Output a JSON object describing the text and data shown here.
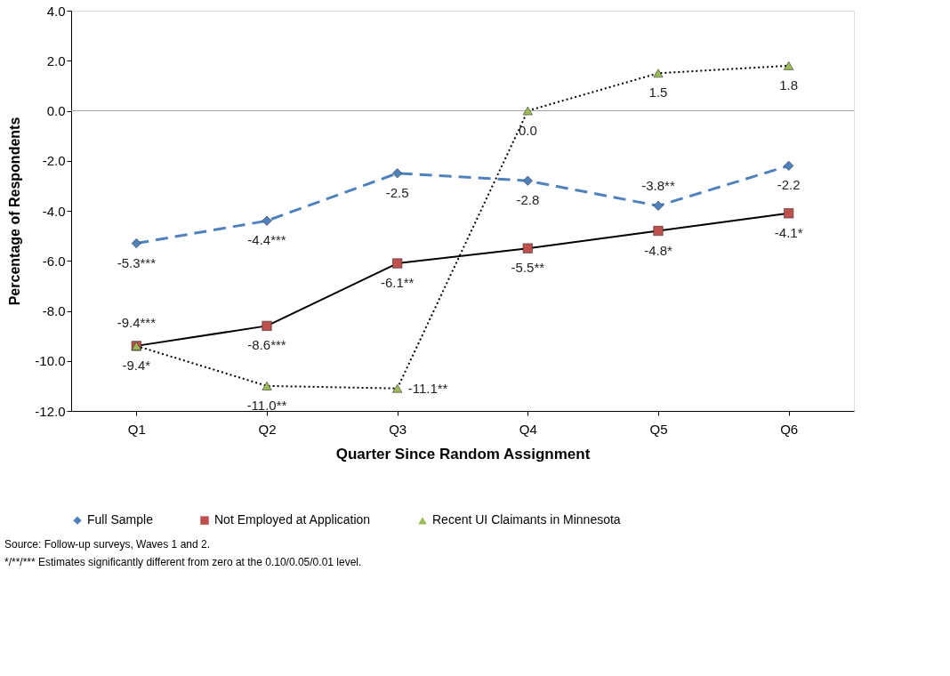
{
  "chart_data": {
    "type": "line",
    "xlabel": "Quarter Since Random Assignment",
    "ylabel": "Percentage of Respondents",
    "categories": [
      "Q1",
      "Q2",
      "Q3",
      "Q4",
      "Q5",
      "Q6"
    ],
    "series": [
      {
        "name": "Full Sample",
        "color": "#4f81bd",
        "colors": [
          "#4f81bd",
          "#4f81bd",
          "#4f81bd",
          "#4f81bd",
          "#4f81bd",
          "#4f81bd"
        ],
        "marker": "diamond",
        "line_style": "dashed",
        "values": [
          -5.3,
          -4.4,
          -2.5,
          -2.8,
          -3.8,
          -2.2
        ],
        "value_labels": [
          "-5.3***",
          "-4.4***",
          "-2.5",
          "-2.8",
          "-3.8**",
          "-2.2"
        ]
      },
      {
        "name": "Not Employed at Application",
        "color": "#000000",
        "colors": [
          "#c0504d",
          "#c0504d",
          "#c0504d",
          "#c0504d",
          "#c0504d",
          "#c0504d"
        ],
        "marker": "square",
        "line_style": "solid",
        "values": [
          -9.4,
          -8.6,
          -6.1,
          -5.5,
          -4.8,
          -4.1
        ],
        "value_labels": [
          "-9.4***",
          "-8.6***",
          "-6.1**",
          "-5.5**",
          "-4.8*",
          "-4.1*"
        ]
      },
      {
        "name": "Recent UI Claimants in Minnesota",
        "color": "#000000",
        "colors": [
          "#9bbb59",
          "#9bbb59",
          "#9bbb59",
          "#9bbb59",
          "#9bbb59",
          "#9bbb59"
        ],
        "marker": "triangle",
        "line_style": "dotted",
        "values": [
          -9.4,
          -11.0,
          -11.1,
          0.0,
          1.5,
          1.8
        ],
        "value_labels": [
          "-9.4*",
          "-11.0**",
          "-11.1**",
          "0.0",
          "1.5",
          "1.8"
        ]
      }
    ],
    "ylim": [
      -12,
      4
    ],
    "yticks": [
      {
        "value": -12,
        "label": "-12.0"
      },
      {
        "value": -10,
        "label": "-10.0"
      },
      {
        "value": -8,
        "label": "-8.0"
      },
      {
        "value": -6,
        "label": "-6.0"
      },
      {
        "value": -4,
        "label": "-4.0"
      },
      {
        "value": -2,
        "label": "-2.0"
      },
      {
        "value": 0,
        "label": "0.0"
      },
      {
        "value": 2,
        "label": "2.0"
      },
      {
        "value": 4,
        "label": "4.0"
      }
    ],
    "ref_lines": [
      {
        "axis": "y",
        "value": 0,
        "color": "#a6a6a6"
      }
    ],
    "grid": false,
    "legend": "bottom",
    "annotations": [
      "Source: Follow-up surveys, Waves 1 and 2.",
      "*/**/*** Estimates significantly different from zero at the 0.10/0.05/0.01 level."
    ]
  }
}
